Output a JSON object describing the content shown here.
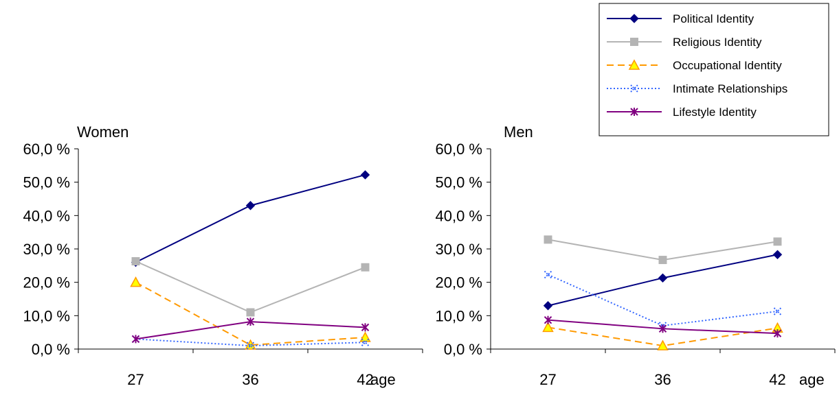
{
  "legend": {
    "position": "top-right",
    "entries": [
      {
        "label": "Political Identity",
        "color": "#000080",
        "marker": "diamond",
        "dash": "solid"
      },
      {
        "label": "Religious Identity",
        "color": "#B4B4B4",
        "marker": "square",
        "dash": "solid"
      },
      {
        "label": "Occupational Identity",
        "color": "#FF9900",
        "marker": "triangle",
        "dash": "dashed",
        "marker_fill": "#FFFF00"
      },
      {
        "label": "Intimate Relationships",
        "color": "#3366FF",
        "marker": "x-dot",
        "dash": "dotted"
      },
      {
        "label": "Lifestyle Identity",
        "color": "#800080",
        "marker": "asterisk",
        "dash": "solid"
      }
    ]
  },
  "chart_data": [
    {
      "type": "line",
      "title": "Women",
      "xlabel": "age",
      "ylabel": "",
      "categories": [
        "27",
        "36",
        "42"
      ],
      "ylim": [
        0,
        60
      ],
      "yticks": [
        "0,0 %",
        "10,0 %",
        "20,0 %",
        "30,0 %",
        "40,0 %",
        "50,0 %",
        "60,0 %"
      ],
      "grid": false,
      "series": [
        {
          "name": "Political Identity",
          "values": [
            26.0,
            43.0,
            52.2
          ]
        },
        {
          "name": "Religious Identity",
          "values": [
            26.3,
            11.0,
            24.5
          ]
        },
        {
          "name": "Occupational Identity",
          "values": [
            20.0,
            1.2,
            3.5
          ]
        },
        {
          "name": "Intimate Relationships",
          "values": [
            3.0,
            1.0,
            2.0
          ]
        },
        {
          "name": "Lifestyle Identity",
          "values": [
            3.0,
            8.2,
            6.5
          ]
        }
      ]
    },
    {
      "type": "line",
      "title": "Men",
      "xlabel": "age",
      "ylabel": "",
      "categories": [
        "27",
        "36",
        "42"
      ],
      "ylim": [
        0,
        60
      ],
      "yticks": [
        "0,0 %",
        "10,0 %",
        "20,0 %",
        "30,0 %",
        "40,0 %",
        "50,0 %",
        "60,0 %"
      ],
      "grid": false,
      "series": [
        {
          "name": "Political Identity",
          "values": [
            13.0,
            21.3,
            28.3
          ]
        },
        {
          "name": "Religious Identity",
          "values": [
            32.8,
            26.7,
            32.2
          ]
        },
        {
          "name": "Occupational Identity",
          "values": [
            6.5,
            1.0,
            6.3
          ]
        },
        {
          "name": "Intimate Relationships",
          "values": [
            22.3,
            7.0,
            11.3
          ]
        },
        {
          "name": "Lifestyle Identity",
          "values": [
            8.7,
            6.1,
            4.7
          ]
        }
      ]
    }
  ]
}
